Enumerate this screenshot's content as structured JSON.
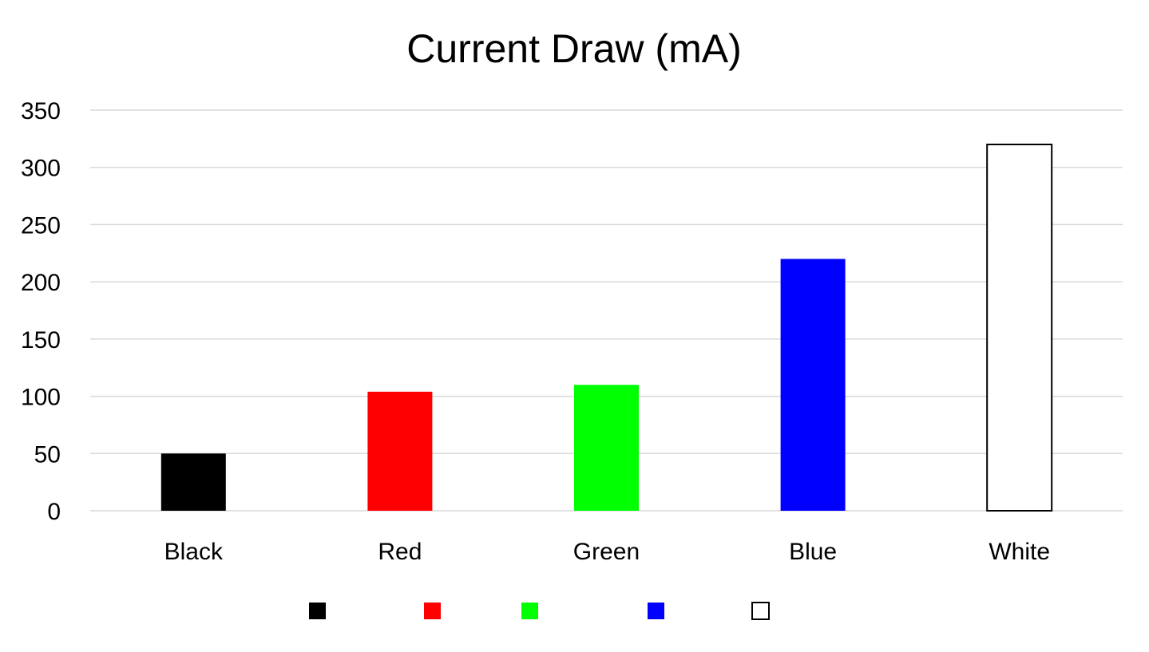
{
  "chart_data": {
    "type": "bar",
    "title": "Current Draw (mA)",
    "xlabel": "",
    "ylabel": "",
    "categories": [
      "Black",
      "Red",
      "Green",
      "Blue",
      "White"
    ],
    "values": [
      50,
      104,
      110,
      220,
      320
    ],
    "colors": [
      "#000000",
      "#ff0000",
      "#00ff00",
      "#0000ff",
      "#ffffff"
    ],
    "outline_colors": [
      "#000000",
      "#ff0000",
      "#00ff00",
      "#0000ff",
      "#000000"
    ],
    "ylim": [
      0,
      350
    ],
    "yticks": [
      0,
      50,
      100,
      150,
      200,
      250,
      300,
      350
    ],
    "ytick_labels": [
      "0",
      "50",
      "100",
      "150",
      "200",
      "250",
      "300",
      "350"
    ],
    "grid": true,
    "legend": {
      "placement": "bottom",
      "entries": [
        "",
        "",
        "",
        "",
        ""
      ]
    }
  }
}
